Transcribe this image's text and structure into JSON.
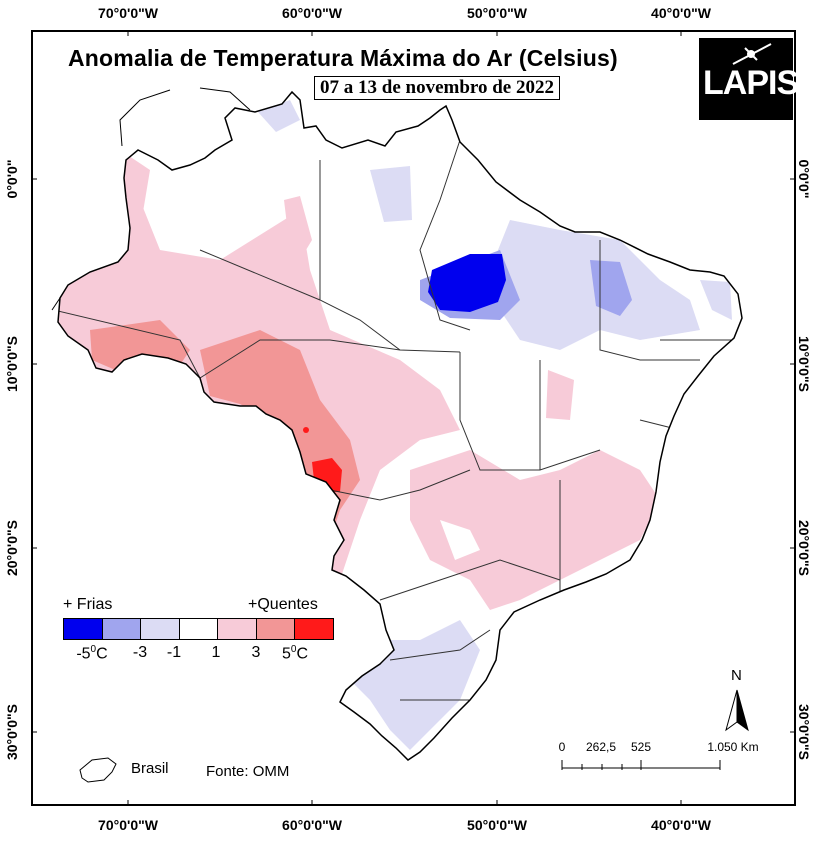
{
  "map": {
    "title": "Anomalia de Temperatura Máxima do Ar (Celsius)",
    "subtitle": "07 a 13 de novembro de 2022",
    "logo_text": "LAPIS",
    "longitude_ticks": [
      "70°0'0\"W",
      "60°0'0\"W",
      "50°0'0\"W",
      "40°0'0\"W"
    ],
    "latitude_ticks": [
      "0°0'0\"",
      "10°0'0\"S",
      "20°0'0\"S",
      "30°0'0\"S"
    ]
  },
  "legend": {
    "cold_label": "+ Frias",
    "hot_label": "+Quentes",
    "classes": [
      {
        "color": "#0000ee",
        "label": "-5"
      },
      {
        "color": "#a0a5ee",
        "label": "-3"
      },
      {
        "color": "#dcdcf4",
        "label": "-1"
      },
      {
        "color": "#ffffff",
        "label": "1"
      },
      {
        "color": "#f7cbd8",
        "label": "3"
      },
      {
        "color": "#f29696",
        "label": "5"
      },
      {
        "color": "#ff1a1a",
        "label": ""
      }
    ],
    "unit_marker": "0",
    "unit_letter": "C"
  },
  "inset_legend": {
    "brasil_label": "Brasil",
    "source": "Fonte: OMM"
  },
  "north_arrow": {
    "label": "N"
  },
  "scale_bar": {
    "labels": [
      "0",
      "262,5",
      "525",
      "1.050 Km"
    ]
  },
  "colors": {
    "cold_strong": "#0000ee",
    "cold_mid": "#a0a5ee",
    "cold_light": "#dcdcf4",
    "neutral": "#ffffff",
    "warm_light": "#f7cbd8",
    "warm_mid": "#f29696",
    "warm_strong": "#ff1a1a"
  }
}
